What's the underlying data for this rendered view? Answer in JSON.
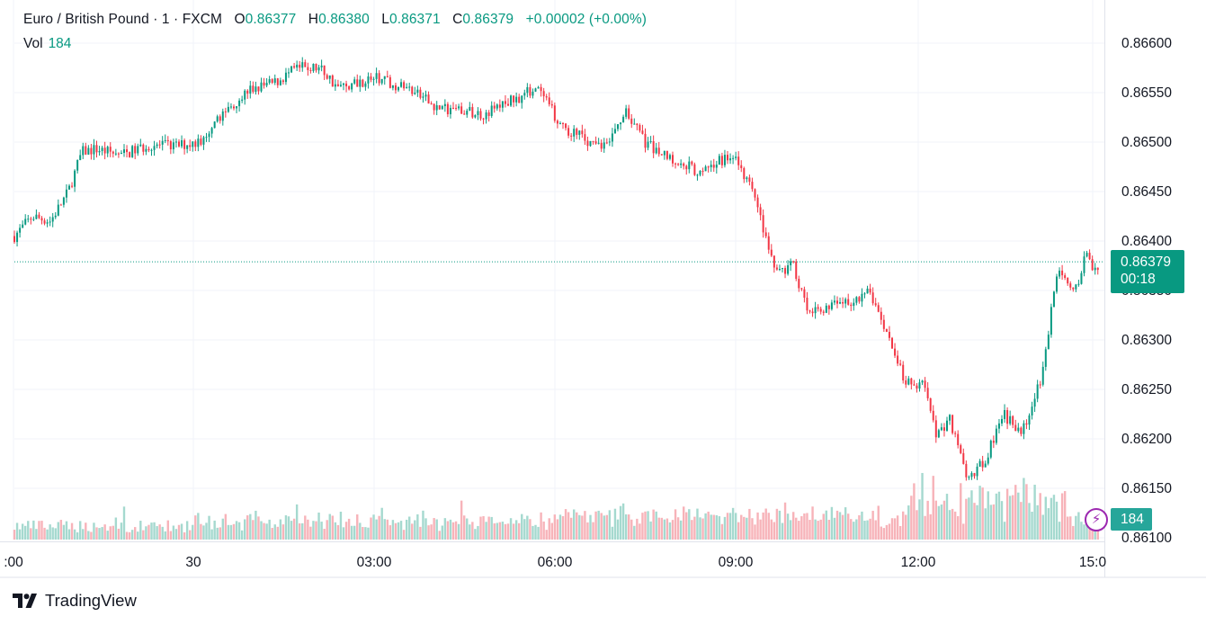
{
  "legend": {
    "symbol": "Euro / British Pound · 1 · FXCM",
    "open_label": "O",
    "open": "0.86377",
    "high_label": "H",
    "high": "0.86380",
    "low_label": "L",
    "low": "0.86371",
    "close_label": "C",
    "close": "0.86379",
    "change": "+0.00002 (+0.00%)",
    "vol_label": "Vol",
    "vol": "184"
  },
  "price_label": {
    "price": "0.86379",
    "countdown": "00:18"
  },
  "volume_label": "184",
  "brand": {
    "name": "TradingView"
  },
  "colors": {
    "up": "#089981",
    "down": "#f23645",
    "up_volume": "#a5d9cf",
    "down_volume": "#f7b3b9",
    "grid": "#f0f3fa",
    "axis_text": "#131722",
    "indicator": "#9c27b0"
  },
  "icons": {
    "brand_logo": "tradingview-logo-icon",
    "alert": "lightning-icon"
  },
  "chart_data": {
    "type": "candlestick",
    "symbol": "EUR/GBP",
    "interval_minutes": 1,
    "x_ticks": [
      ":00",
      "30",
      "03:00",
      "06:00",
      "09:00",
      "12:00",
      "15:0"
    ],
    "y_ticks": [
      "0.86600",
      "0.86550",
      "0.86500",
      "0.86450",
      "0.86400",
      "0.86350",
      "0.86300",
      "0.86250",
      "0.86200",
      "0.86150",
      "0.86100"
    ],
    "ylim": [
      0.861,
      0.86615
    ],
    "grid": true,
    "last_price": 0.86379,
    "series": [
      {
        "name": "price",
        "path": [
          [
            0.0,
            0.86405
          ],
          [
            0.02,
            0.86425
          ],
          [
            0.04,
            0.8642
          ],
          [
            0.06,
            0.8645
          ],
          [
            0.075,
            0.8649
          ],
          [
            0.09,
            0.86493
          ],
          [
            0.12,
            0.86487
          ],
          [
            0.15,
            0.86497
          ],
          [
            0.18,
            0.86496
          ],
          [
            0.215,
            0.86502
          ],
          [
            0.23,
            0.86528
          ],
          [
            0.26,
            0.86552
          ],
          [
            0.29,
            0.8656
          ],
          [
            0.315,
            0.86575
          ],
          [
            0.34,
            0.86575
          ],
          [
            0.36,
            0.86555
          ],
          [
            0.4,
            0.86565
          ],
          [
            0.44,
            0.86553
          ],
          [
            0.47,
            0.86535
          ],
          [
            0.52,
            0.86528
          ],
          [
            0.56,
            0.86545
          ],
          [
            0.58,
            0.86555
          ],
          [
            0.61,
            0.86515
          ],
          [
            0.64,
            0.865
          ],
          [
            0.66,
            0.86495
          ],
          [
            0.68,
            0.86535
          ],
          [
            0.7,
            0.865
          ],
          [
            0.72,
            0.8649
          ],
          [
            0.76,
            0.8647
          ],
          [
            0.8,
            0.86488
          ],
          [
            0.82,
            0.8645
          ],
          [
            0.84,
            0.8639
          ],
          [
            0.85,
            0.86365
          ],
          [
            0.865,
            0.86378
          ],
          [
            0.88,
            0.86335
          ],
          [
            0.9,
            0.8633
          ],
          [
            0.93,
            0.8634
          ],
          [
            0.95,
            0.8635
          ],
          [
            0.97,
            0.86305
          ],
          [
            0.99,
            0.8626
          ],
          [
            1.01,
            0.86255
          ],
          [
            1.025,
            0.86205
          ],
          [
            1.04,
            0.8622
          ],
          [
            1.06,
            0.8616
          ],
          [
            1.08,
            0.8618
          ],
          [
            1.1,
            0.86225
          ],
          [
            1.12,
            0.86205
          ],
          [
            1.14,
            0.86255
          ],
          [
            1.15,
            0.8631
          ],
          [
            1.16,
            0.8637
          ],
          [
            1.18,
            0.8635
          ],
          [
            1.19,
            0.86385
          ],
          [
            1.205,
            0.86368
          ],
          [
            1.22,
            0.86379
          ]
        ]
      }
    ],
    "volume": {
      "last": 184,
      "typical_range": [
        30,
        130
      ]
    }
  }
}
